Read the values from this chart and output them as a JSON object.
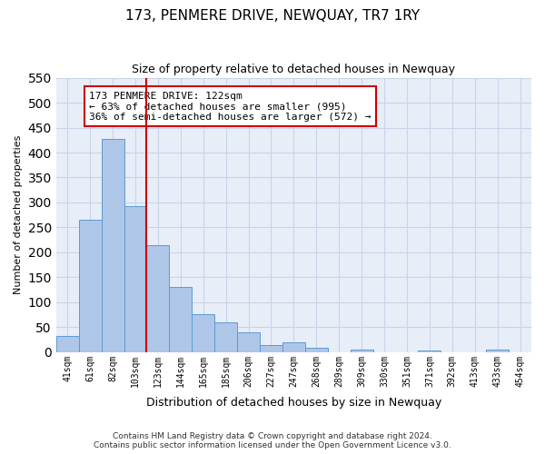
{
  "title": "173, PENMERE DRIVE, NEWQUAY, TR7 1RY",
  "subtitle": "Size of property relative to detached houses in Newquay",
  "xlabel": "Distribution of detached houses by size in Newquay",
  "ylabel": "Number of detached properties",
  "footer_line1": "Contains HM Land Registry data © Crown copyright and database right 2024.",
  "footer_line2": "Contains public sector information licensed under the Open Government Licence v3.0.",
  "bin_labels": [
    "41sqm",
    "61sqm",
    "82sqm",
    "103sqm",
    "123sqm",
    "144sqm",
    "165sqm",
    "185sqm",
    "206sqm",
    "227sqm",
    "247sqm",
    "268sqm",
    "289sqm",
    "309sqm",
    "330sqm",
    "351sqm",
    "371sqm",
    "392sqm",
    "413sqm",
    "433sqm",
    "454sqm"
  ],
  "bar_values": [
    32,
    265,
    428,
    293,
    215,
    130,
    76,
    59,
    40,
    15,
    20,
    9,
    0,
    5,
    0,
    0,
    4,
    0,
    0,
    5,
    0
  ],
  "bar_color": "#aec6e8",
  "bar_edge_color": "#5b9bd5",
  "vline_color": "#cc0000",
  "vline_index": 4,
  "ylim": [
    0,
    550
  ],
  "yticks": [
    0,
    50,
    100,
    150,
    200,
    250,
    300,
    350,
    400,
    450,
    500,
    550
  ],
  "annotation_title": "173 PENMERE DRIVE: 122sqm",
  "annotation_line1": "← 63% of detached houses are smaller (995)",
  "annotation_line2": "36% of semi-detached houses are larger (572) →",
  "annotation_box_color": "#ffffff",
  "annotation_box_edge_color": "#cc0000",
  "bg_color": "#ffffff",
  "ax_bg_color": "#e8eef8",
  "grid_color": "#c8d4e8"
}
